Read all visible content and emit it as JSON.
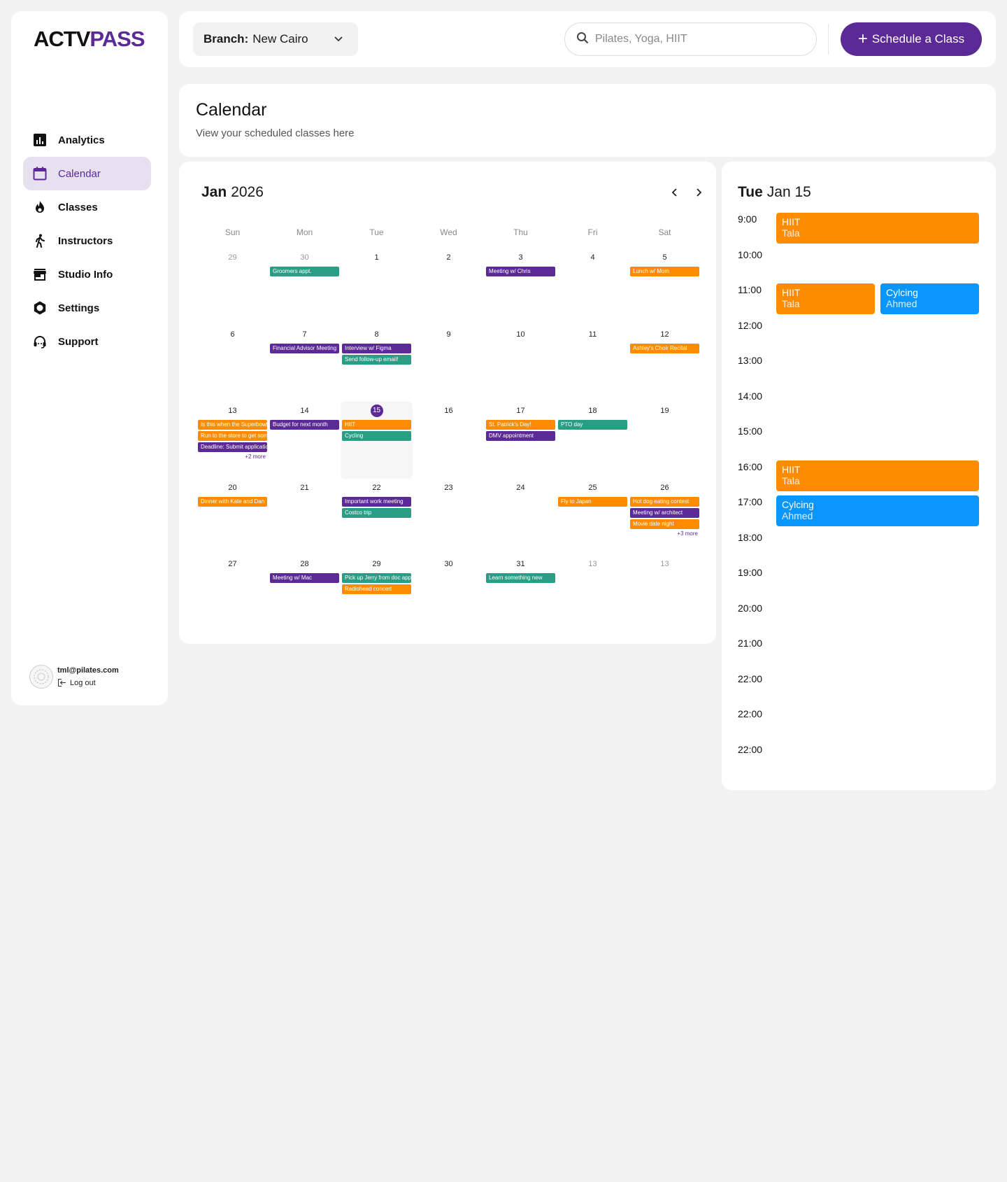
{
  "brand": {
    "part1": "ACTV",
    "part2": "PASS"
  },
  "sidebar": {
    "items": [
      {
        "label": "Analytics",
        "icon": "analytics-icon"
      },
      {
        "label": "Calendar",
        "icon": "calendar-icon",
        "active": true
      },
      {
        "label": "Classes",
        "icon": "flame-icon"
      },
      {
        "label": "Instructors",
        "icon": "walking-person-icon"
      },
      {
        "label": "Studio Info",
        "icon": "storefront-icon"
      },
      {
        "label": "Settings",
        "icon": "gear-icon"
      },
      {
        "label": "Support",
        "icon": "headset-icon"
      }
    ],
    "user": {
      "email": "tml@pilates.com",
      "logout": "Log out"
    }
  },
  "topbar": {
    "branch_label": "Branch:",
    "branch_value": "New Cairo",
    "search_placeholder": "Pilates, Yoga, HIIT",
    "schedule_button": "Schedule a Class"
  },
  "header": {
    "title": "Calendar",
    "subtitle": "View your scheduled classes here"
  },
  "colors": {
    "accent": "#5b2a96",
    "orange": "#ff8c00",
    "teal": "#2a9d85",
    "blue": "#0a96fa"
  },
  "calendar": {
    "month": "Jan",
    "year": "2026",
    "weekdays": [
      "Sun",
      "Mon",
      "Tue",
      "Wed",
      "Thu",
      "Fri",
      "Sat"
    ],
    "weeks": [
      [
        {
          "day": "29",
          "muted": true
        },
        {
          "day": "30",
          "muted": true,
          "events": [
            {
              "title": "Groomers appt.",
              "color": "teal"
            }
          ]
        },
        {
          "day": "1"
        },
        {
          "day": "2"
        },
        {
          "day": "3",
          "events": [
            {
              "title": "Meeting w/ Chris",
              "color": "purple"
            }
          ]
        },
        {
          "day": "4"
        },
        {
          "day": "5",
          "events": [
            {
              "title": "Lunch w/ Mom",
              "color": "orange"
            }
          ]
        }
      ],
      [
        {
          "day": "6"
        },
        {
          "day": "7",
          "events": [
            {
              "title": "Financial Advisor Meeting",
              "color": "purple"
            }
          ]
        },
        {
          "day": "8",
          "events": [
            {
              "title": "Interview w/ Figma",
              "color": "purple"
            },
            {
              "title": "Send follow-up email!",
              "color": "teal"
            }
          ]
        },
        {
          "day": "9"
        },
        {
          "day": "10"
        },
        {
          "day": "11"
        },
        {
          "day": "12",
          "events": [
            {
              "title": "Ashley's Choir Recital",
              "color": "orange"
            }
          ]
        }
      ],
      [
        {
          "day": "13",
          "events": [
            {
              "title": "Is this when the Superbowl is?",
              "color": "orange"
            },
            {
              "title": "Run to the store to get some snacks",
              "color": "orange"
            },
            {
              "title": "Deadline: Submit application",
              "color": "purple"
            }
          ],
          "more": "+2 more"
        },
        {
          "day": "14",
          "events": [
            {
              "title": "Budget for next month",
              "color": "purple"
            }
          ]
        },
        {
          "day": "15",
          "today": true,
          "events": [
            {
              "title": "HIIT",
              "color": "orange"
            },
            {
              "title": "Cycling",
              "color": "teal"
            }
          ]
        },
        {
          "day": "16"
        },
        {
          "day": "17",
          "events": [
            {
              "title": "St. Patrick's Day!",
              "color": "orange"
            },
            {
              "title": "DMV appointment",
              "color": "purple"
            }
          ]
        },
        {
          "day": "18",
          "events": [
            {
              "title": "PTO day",
              "color": "teal"
            }
          ]
        },
        {
          "day": "19"
        }
      ],
      [
        {
          "day": "20",
          "events": [
            {
              "title": "Dinner with Kate and Dan",
              "color": "orange"
            }
          ]
        },
        {
          "day": "21"
        },
        {
          "day": "22",
          "events": [
            {
              "title": "Important work meeting",
              "color": "purple"
            },
            {
              "title": "Costco trip",
              "color": "teal"
            }
          ]
        },
        {
          "day": "23"
        },
        {
          "day": "24"
        },
        {
          "day": "25",
          "events": [
            {
              "title": "Fly to Japan",
              "color": "orange"
            }
          ]
        },
        {
          "day": "26",
          "events": [
            {
              "title": "Hot dog eating contest",
              "color": "orange"
            },
            {
              "title": "Meeting w/ architect",
              "color": "purple"
            },
            {
              "title": "Movie date night",
              "color": "orange"
            }
          ],
          "more": "+3 more"
        }
      ],
      [
        {
          "day": "27"
        },
        {
          "day": "28",
          "events": [
            {
              "title": "Meeting w/ Mac",
              "color": "purple"
            }
          ]
        },
        {
          "day": "29",
          "events": [
            {
              "title": "Pick up Jerry from doc appt",
              "color": "teal"
            },
            {
              "title": "Radiohead concert",
              "color": "orange"
            }
          ]
        },
        {
          "day": "30"
        },
        {
          "day": "31",
          "events": [
            {
              "title": "Learn something new",
              "color": "teal"
            }
          ]
        },
        {
          "day": "13",
          "muted": true
        },
        {
          "day": "13",
          "muted": true
        }
      ]
    ]
  },
  "dayview": {
    "weekday": "Tue",
    "date": "Jan 15",
    "times": [
      "9:00",
      "10:00",
      "11:00",
      "12:00",
      "13:00",
      "14:00",
      "15:00",
      "16:00",
      "17:00",
      "18:00",
      "19:00",
      "20:00",
      "21:00",
      "22:00",
      "22:00",
      "22:00"
    ],
    "events": [
      {
        "title": "HIIT",
        "instructor": "Tala",
        "color": "orange",
        "start_slot": 0,
        "column": "full"
      },
      {
        "title": "HIIT",
        "instructor": "Tala",
        "color": "orange",
        "start_slot": 2,
        "column": "left"
      },
      {
        "title": "Cylcing",
        "instructor": "Ahmed",
        "color": "blue",
        "start_slot": 2,
        "column": "right"
      },
      {
        "title": "HIIT",
        "instructor": "Tala",
        "color": "orange",
        "start_slot": 7,
        "column": "full"
      },
      {
        "title": "Cylcing",
        "instructor": "Ahmed",
        "color": "blue",
        "start_slot": 8,
        "column": "full"
      }
    ]
  }
}
